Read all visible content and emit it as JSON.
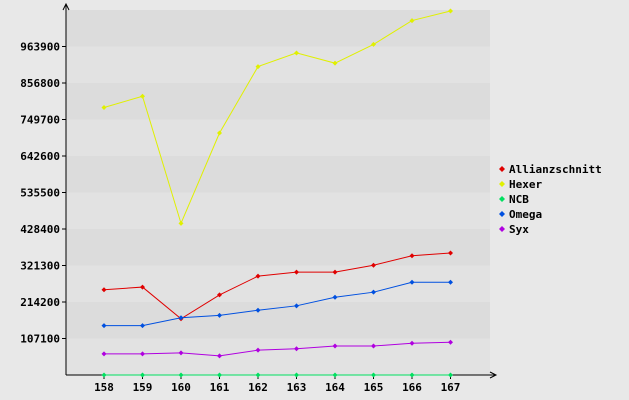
{
  "chart_data": {
    "type": "line",
    "x": [
      "158",
      "159",
      "160",
      "161",
      "162",
      "163",
      "164",
      "165",
      "166",
      "167"
    ],
    "yticks": [
      "107100",
      "214200",
      "321300",
      "428400",
      "535500",
      "642600",
      "749700",
      "856800",
      "963900"
    ],
    "ylim": [
      0,
      1071000
    ],
    "legend_position": "right",
    "grid": true,
    "series": [
      {
        "name": "Allianzschnitt",
        "color": "#e00000",
        "values": [
          250000,
          258000,
          165000,
          235000,
          290000,
          302000,
          302000,
          322000,
          350000,
          358000
        ]
      },
      {
        "name": "Hexer",
        "color": "#e0f000",
        "values": [
          785000,
          818000,
          445000,
          710000,
          905000,
          945000,
          915000,
          970000,
          1040000,
          1068000
        ]
      },
      {
        "name": "NCB",
        "color": "#00e060",
        "values": [
          0,
          0,
          0,
          0,
          0,
          0,
          0,
          0,
          0,
          0
        ]
      },
      {
        "name": "Omega",
        "color": "#0050e0",
        "values": [
          145000,
          145000,
          168000,
          175000,
          190000,
          203000,
          228000,
          243000,
          272000,
          272000
        ]
      },
      {
        "name": "Syx",
        "color": "#b000e0",
        "values": [
          62000,
          62000,
          65000,
          56000,
          73000,
          77000,
          85000,
          85000,
          93000,
          96000
        ]
      }
    ]
  }
}
